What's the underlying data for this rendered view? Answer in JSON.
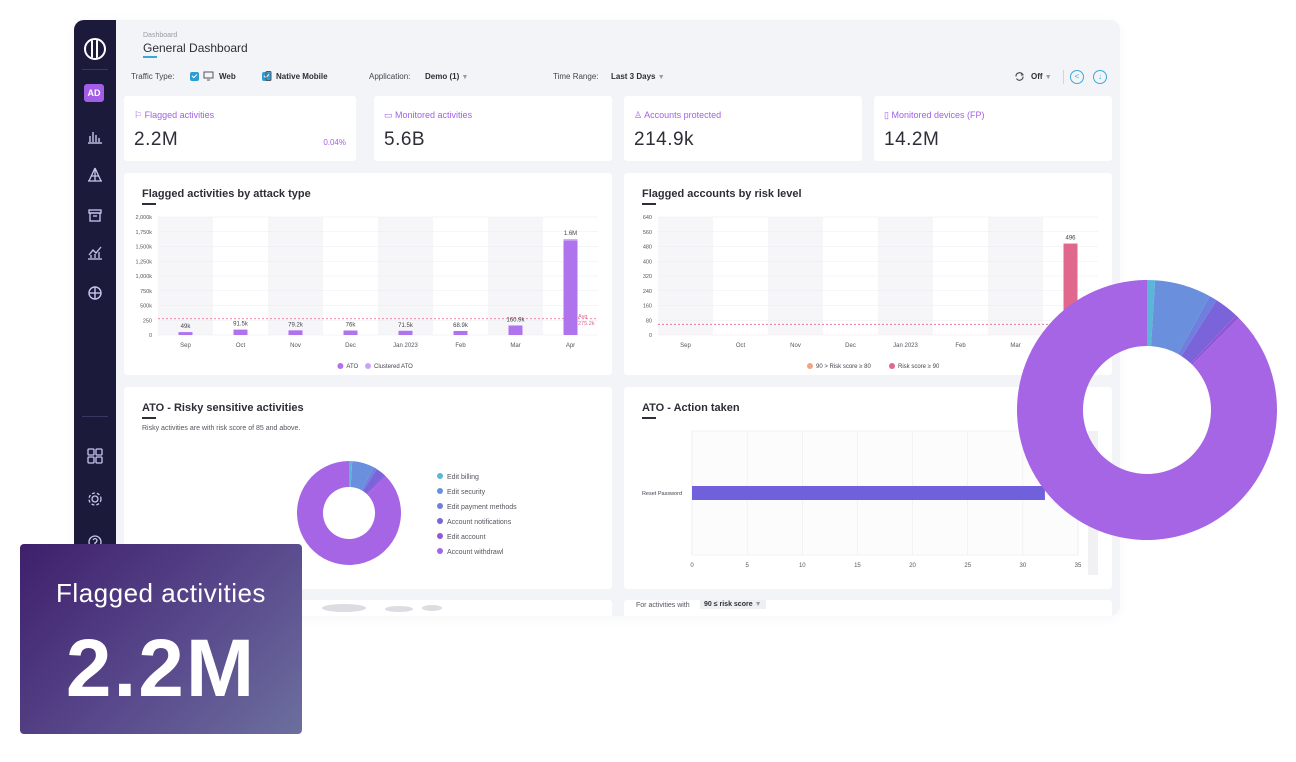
{
  "header": {
    "breadcrumb": "Dashboard",
    "title": "General Dashboard"
  },
  "sidebar": {
    "avatar": "AD",
    "icons": [
      "bar-chart-icon",
      "network-icon",
      "archive-icon",
      "analytics-icon",
      "shield-icon",
      "grid-icon",
      "gear-icon",
      "help-icon"
    ]
  },
  "filters": {
    "traffic_type_label": "Traffic Type:",
    "web_label": "Web",
    "native_label": "Native Mobile",
    "application_label": "Application:",
    "application_value": "Demo (1)",
    "time_range_label": "Time Range:",
    "time_range_value": "Last 3 Days",
    "refresh_value": "Off"
  },
  "kpis": [
    {
      "label": "Flagged activities",
      "value": "2.2M",
      "pct": "0.04%",
      "icon": "flag-icon"
    },
    {
      "label": "Monitored activities",
      "value": "5.6B",
      "icon": "image-icon"
    },
    {
      "label": "Accounts protected",
      "value": "214.9k",
      "icon": "user-icon"
    },
    {
      "label": "Monitored devices (FP)",
      "value": "14.2M",
      "icon": "mobile-icon"
    }
  ],
  "chart_data": [
    {
      "type": "bar",
      "title": "Flagged activities by attack type",
      "categories": [
        "Sep",
        "Oct",
        "Nov",
        "Dec",
        "Jan 2023",
        "Feb",
        "Mar",
        "Apr"
      ],
      "y_ticks": [
        "0",
        "250",
        "500k",
        "750k",
        "1,000k",
        "1,250k",
        "1,500k",
        "1,750k",
        "2,000k"
      ],
      "ylim": [
        0,
        2000000
      ],
      "series": [
        {
          "name": "ATO",
          "values": [
            49000,
            91500,
            79200,
            76000,
            71500,
            68900,
            160900,
            1600000
          ],
          "labels": [
            "49k",
            "91.5k",
            "79.2k",
            "76k",
            "71.5k",
            "68.9k",
            "160.9k",
            "1.6M"
          ]
        },
        {
          "name": "Clustered ATO",
          "values": [
            0,
            0,
            0,
            0,
            0,
            0,
            0,
            25000
          ]
        }
      ],
      "avg_line": {
        "value": 275200,
        "label_line1": "Avg",
        "label_line2": "275.2k"
      }
    },
    {
      "type": "bar",
      "title": "Flagged accounts by risk level",
      "categories": [
        "Sep",
        "Oct",
        "Nov",
        "Dec",
        "Jan 2023",
        "Feb",
        "Mar",
        "Apr"
      ],
      "y_ticks": [
        "0",
        "80",
        "160",
        "240",
        "320",
        "400",
        "480",
        "560",
        "640"
      ],
      "ylim": [
        0,
        640
      ],
      "series": [
        {
          "name": "90 > Risk score ≥ 80",
          "values": [
            0,
            0,
            0,
            0,
            0,
            0,
            0,
            0
          ]
        },
        {
          "name": "Risk score ≥ 90",
          "values": [
            0,
            0,
            0,
            0,
            0,
            0,
            0,
            496
          ],
          "labels": [
            "",
            "",
            "",
            "",
            "",
            "",
            "",
            "496"
          ]
        }
      ],
      "avg_line": {
        "value": 58
      }
    },
    {
      "type": "pie",
      "title": "ATO - Risky sensitive activities",
      "subtitle": "Risky activities are with risk score of 85 and above.",
      "slices": [
        {
          "name": "Edit billing",
          "value": 1,
          "color": "#5bb6d8"
        },
        {
          "name": "Edit security",
          "value": 7,
          "color": "#6a8fdc"
        },
        {
          "name": "Edit payment methods",
          "value": 1,
          "color": "#6f7fe0"
        },
        {
          "name": "Account notifications",
          "value": 3,
          "color": "#7b63d9"
        },
        {
          "name": "Edit account",
          "value": 0.5,
          "color": "#9356d9"
        },
        {
          "name": "Account withdrawl",
          "value": 87.5,
          "color": "#a665e4"
        }
      ]
    },
    {
      "type": "bar",
      "orientation": "horizontal",
      "title": "ATO - Action taken",
      "categories": [
        "Reset Password"
      ],
      "values": [
        32
      ],
      "x_ticks": [
        "0",
        "5",
        "10",
        "15",
        "20",
        "25",
        "30",
        "35"
      ],
      "xlim": [
        0,
        35
      ]
    }
  ],
  "bottom": {
    "for_label": "For activities with",
    "score_value": "90 ≤ risk score"
  },
  "overlay": {
    "label": "Flagged activities",
    "value": "2.2M"
  },
  "colors": {
    "accent": "#a35ee8",
    "link": "#3ba9d8",
    "sidebar": "#1c1a3b",
    "bar_primary": "#b073ee",
    "bar_risk": "#e0688c",
    "bar_risk_low": "#f2a57f",
    "avg_line": "#e0688c"
  }
}
